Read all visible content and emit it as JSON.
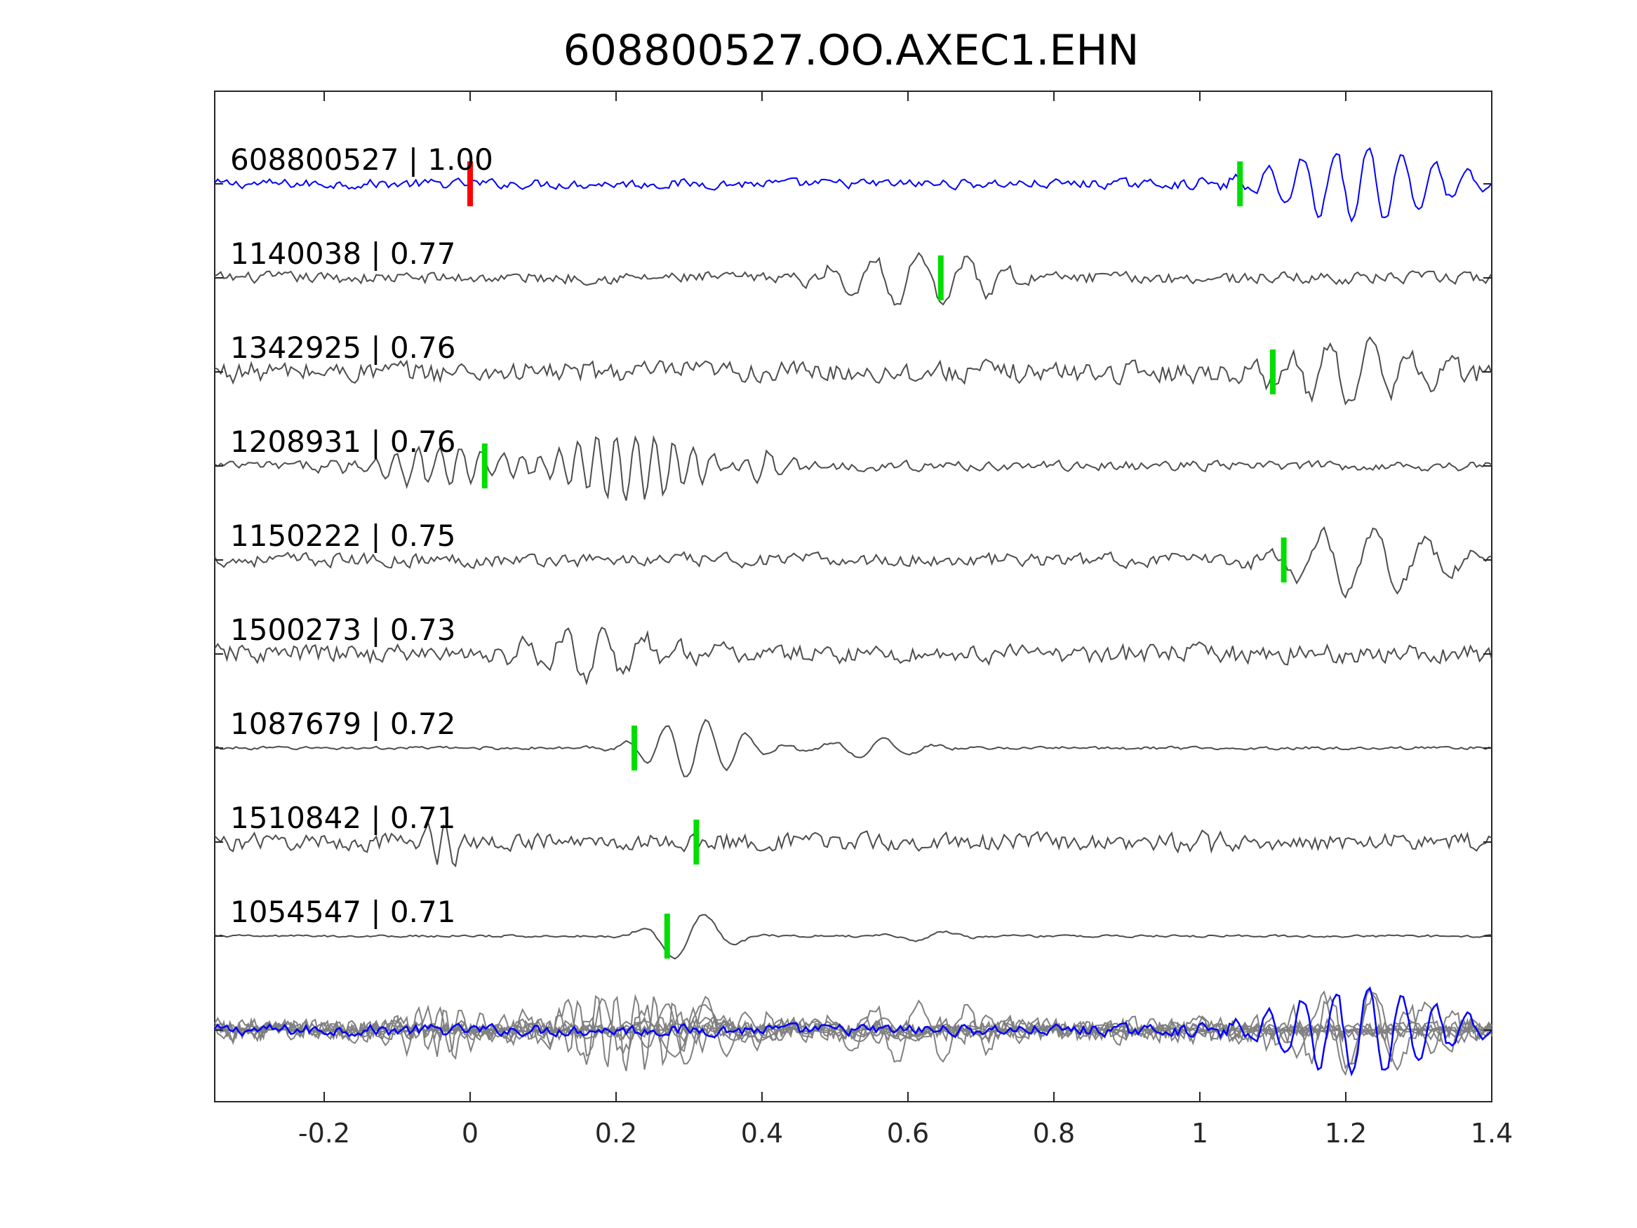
{
  "chart_data": {
    "type": "line",
    "title": "608800527.OO.AXEC1.EHN",
    "xlabel": "",
    "ylabel": "",
    "xlim": [
      -0.35,
      1.4
    ],
    "x_ticks": [
      "-0.2",
      "0",
      "0.2",
      "0.4",
      "0.6",
      "0.8",
      "1",
      "1.2",
      "1.4"
    ],
    "x_tick_values": [
      -0.2,
      0,
      0.2,
      0.4,
      0.6,
      0.8,
      1.0,
      1.2,
      1.4
    ],
    "grid": false,
    "colors": {
      "template": "#0000ff",
      "match": "#4d4d4d",
      "stack": "#808080",
      "pick_origin": "#ff0000",
      "pick": "#00dd00",
      "axes": "#262626"
    },
    "traces": [
      {
        "label": "608800527 | 1.00",
        "id": "608800527",
        "cc": 1.0,
        "role": "template",
        "pick_origin_x": 0.0,
        "pick_x": 1.055
      },
      {
        "label": "1140038 | 0.77",
        "id": "1140038",
        "cc": 0.77,
        "role": "match",
        "pick_x": 0.645
      },
      {
        "label": "1342925 | 0.76",
        "id": "1342925",
        "cc": 0.76,
        "role": "match",
        "pick_x": 1.1
      },
      {
        "label": "1208931 | 0.76",
        "id": "1208931",
        "cc": 0.76,
        "role": "match",
        "pick_x": 0.02
      },
      {
        "label": "1150222 | 0.75",
        "id": "1150222",
        "cc": 0.75,
        "role": "match",
        "pick_x": 1.115
      },
      {
        "label": "1500273 | 0.73",
        "id": "1500273",
        "cc": 0.73,
        "role": "match"
      },
      {
        "label": "1087679 | 0.72",
        "id": "1087679",
        "cc": 0.72,
        "role": "match",
        "pick_x": 0.225
      },
      {
        "label": "1510842 | 0.71",
        "id": "1510842",
        "cc": 0.71,
        "role": "match",
        "pick_x": 0.31
      },
      {
        "label": "1054547 | 0.71",
        "id": "1054547",
        "cc": 0.71,
        "role": "match",
        "pick_x": 0.27
      }
    ]
  }
}
